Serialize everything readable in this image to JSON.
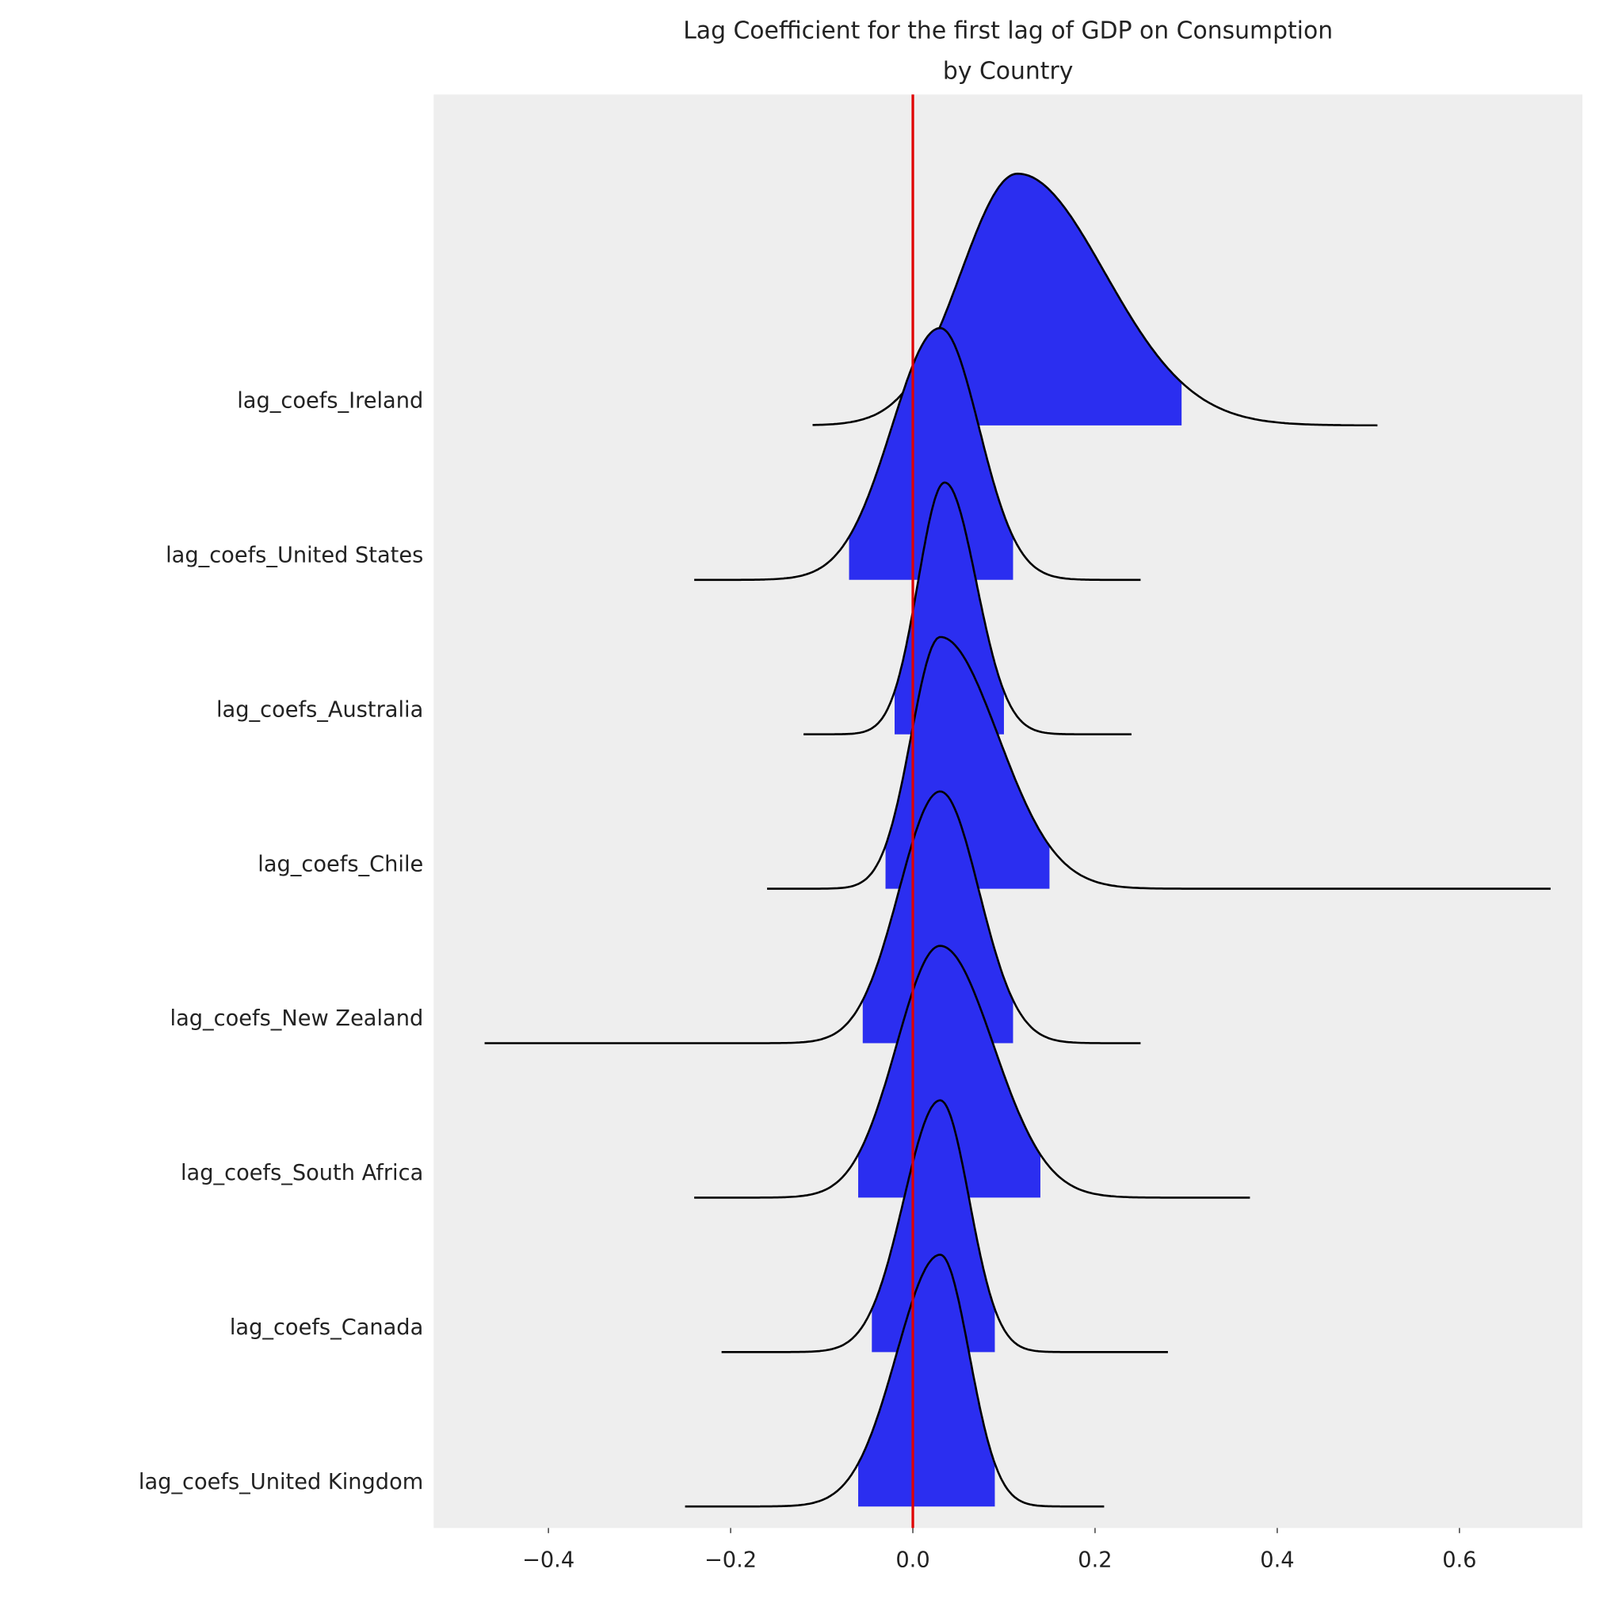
{
  "chart_data": {
    "type": "ridge",
    "title": [
      "Lag Coefficient for the first lag of GDP on Consumption",
      "by Country"
    ],
    "categories": [
      "lag_coefs_Ireland",
      "lag_coefs_United States",
      "lag_coefs_Australia",
      "lag_coefs_Chile",
      "lag_coefs_New Zealand",
      "lag_coefs_South Africa",
      "lag_coefs_Canada",
      "lag_coefs_United Kingdom"
    ],
    "series": [
      {
        "min": -0.11,
        "hdi_low": -0.002,
        "mode": 0.115,
        "hdi_high": 0.295,
        "max": 0.51
      },
      {
        "min": -0.24,
        "hdi_low": -0.07,
        "mode": 0.03,
        "hdi_high": 0.11,
        "max": 0.25
      },
      {
        "min": -0.12,
        "hdi_low": -0.02,
        "mode": 0.035,
        "hdi_high": 0.1,
        "max": 0.24
      },
      {
        "min": -0.16,
        "hdi_low": -0.03,
        "mode": 0.03,
        "hdi_high": 0.15,
        "max": 0.7
      },
      {
        "min": -0.47,
        "hdi_low": -0.055,
        "mode": 0.03,
        "hdi_high": 0.11,
        "max": 0.25
      },
      {
        "min": -0.24,
        "hdi_low": -0.06,
        "mode": 0.03,
        "hdi_high": 0.14,
        "max": 0.37
      },
      {
        "min": -0.21,
        "hdi_low": -0.045,
        "mode": 0.03,
        "hdi_high": 0.09,
        "max": 0.28
      },
      {
        "min": -0.25,
        "hdi_low": -0.06,
        "mode": 0.03,
        "hdi_high": 0.09,
        "max": 0.21
      }
    ],
    "color": "#2b2ef0",
    "ref_line": 0,
    "ref_color": "#e00000",
    "xlim": [
      -0.526,
      0.735
    ],
    "xticks": [
      {
        "value": -0.4,
        "label": "−0.4"
      },
      {
        "value": -0.2,
        "label": "−0.2"
      },
      {
        "value": 0,
        "label": "0.0"
      },
      0.2,
      0.4,
      0.6
    ]
  }
}
